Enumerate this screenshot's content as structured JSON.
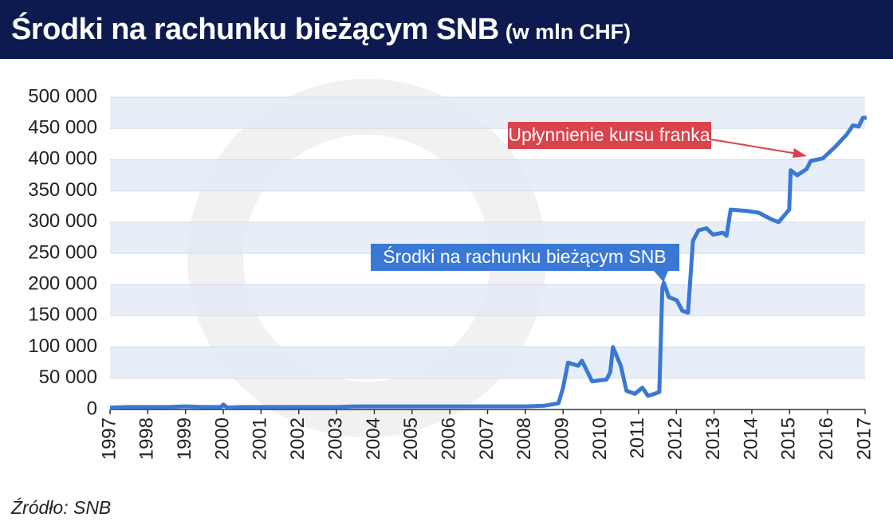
{
  "chart_data": {
    "type": "line",
    "title": "Środki na rachunku bieżącym SNB",
    "subtitle": "(w mln CHF)",
    "source": "Źródło: SNB",
    "x": [
      1997.0,
      1997.5,
      1998.0,
      1998.5,
      1999.0,
      1999.5,
      1999.95,
      2000.0,
      2000.1,
      2000.5,
      2001.0,
      2001.5,
      2002.0,
      2002.5,
      2003.0,
      2003.5,
      2004.0,
      2004.5,
      2005.0,
      2005.5,
      2006.0,
      2006.5,
      2007.0,
      2007.5,
      2008.0,
      2008.5,
      2008.88,
      2009.0,
      2009.13,
      2009.4,
      2009.5,
      2009.77,
      2010.15,
      2010.25,
      2010.32,
      2010.53,
      2010.68,
      2010.9,
      2011.1,
      2011.25,
      2011.42,
      2011.55,
      2011.63,
      2011.67,
      2011.8,
      2012.01,
      2012.16,
      2012.31,
      2012.44,
      2012.59,
      2012.8,
      2012.97,
      2013.23,
      2013.33,
      2013.44,
      2013.86,
      2014.18,
      2014.5,
      2014.71,
      2014.82,
      2014.99,
      2015.03,
      2015.2,
      2015.45,
      2015.56,
      2015.88,
      2016.2,
      2016.51,
      2016.68,
      2016.83,
      2016.94,
      2017.04
    ],
    "series": [
      {
        "name": "Środki na rachunku bieżącym SNB",
        "color": "#3a78d6",
        "values": [
          3000,
          4000,
          4000,
          4000,
          5000,
          4000,
          4000,
          8000,
          3000,
          4000,
          4000,
          4000,
          4000,
          4000,
          4000,
          5000,
          5000,
          5000,
          5000,
          5000,
          5000,
          5000,
          5000,
          5000,
          5000,
          6000,
          10000,
          35000,
          75000,
          70000,
          78000,
          45000,
          48000,
          60000,
          100000,
          70000,
          30000,
          25000,
          35000,
          22000,
          25000,
          28000,
          195000,
          203000,
          180000,
          175000,
          158000,
          155000,
          270000,
          287000,
          290000,
          280000,
          283000,
          278000,
          320000,
          318000,
          315000,
          305000,
          300000,
          308000,
          320000,
          383000,
          375000,
          385000,
          398000,
          402000,
          420000,
          440000,
          455000,
          453000,
          467000,
          467000
        ]
      }
    ],
    "xlim": [
      1997,
      2017
    ],
    "xticks": [
      1997,
      1998,
      1999,
      2000,
      2001,
      2002,
      2003,
      2004,
      2005,
      2006,
      2007,
      2008,
      2009,
      2010,
      2011,
      2012,
      2013,
      2014,
      2015,
      2016,
      2017
    ],
    "ylim": [
      0,
      500000
    ],
    "yticks": [
      0,
      {
        "value": 50000,
        "label": "50 000"
      },
      {
        "value": 100000,
        "label": "100 000"
      },
      {
        "value": 150000,
        "label": "150 000"
      },
      {
        "value": 200000,
        "label": "200 000"
      },
      {
        "value": 250000,
        "label": "250 000"
      },
      {
        "value": 300000,
        "label": "300 000"
      },
      {
        "value": 350000,
        "label": "350 000"
      },
      {
        "value": 400000,
        "label": "400 000"
      },
      {
        "value": 450000,
        "label": "450 000"
      },
      {
        "value": 500000,
        "label": "500 000"
      }
    ],
    "annotation": {
      "text": "Upłynnienie kursu franka",
      "color": "#d9434b"
    },
    "banded_grid": true
  }
}
